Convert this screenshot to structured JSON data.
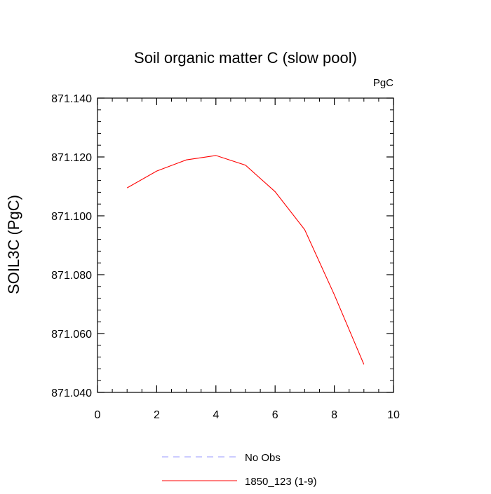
{
  "chart_data": {
    "type": "line",
    "title": "Soil organic matter C (slow pool)",
    "units_label": "PgC",
    "ylabel": "SOIL3C  (PgC)",
    "xlabel": "",
    "xlim": [
      0,
      10
    ],
    "ylim": [
      871.04,
      871.14
    ],
    "xticks": [
      "0",
      "2",
      "4",
      "6",
      "8",
      "10"
    ],
    "yticks": [
      "871.040",
      "871.060",
      "871.080",
      "871.100",
      "871.120",
      "871.140"
    ],
    "grid": false,
    "legend_position": "bottom",
    "series": [
      {
        "name": "No Obs",
        "color": "#9999ff",
        "style": "dashed",
        "x": [],
        "y": []
      },
      {
        "name": "1850_123 (1-9)",
        "color": "#ff0000",
        "style": "solid",
        "x": [
          1,
          2,
          3,
          4,
          5,
          6,
          7,
          8,
          9
        ],
        "y": [
          871.1095,
          871.1152,
          871.119,
          871.1205,
          871.1172,
          871.1082,
          871.0953,
          871.0732,
          871.0495
        ]
      }
    ]
  }
}
